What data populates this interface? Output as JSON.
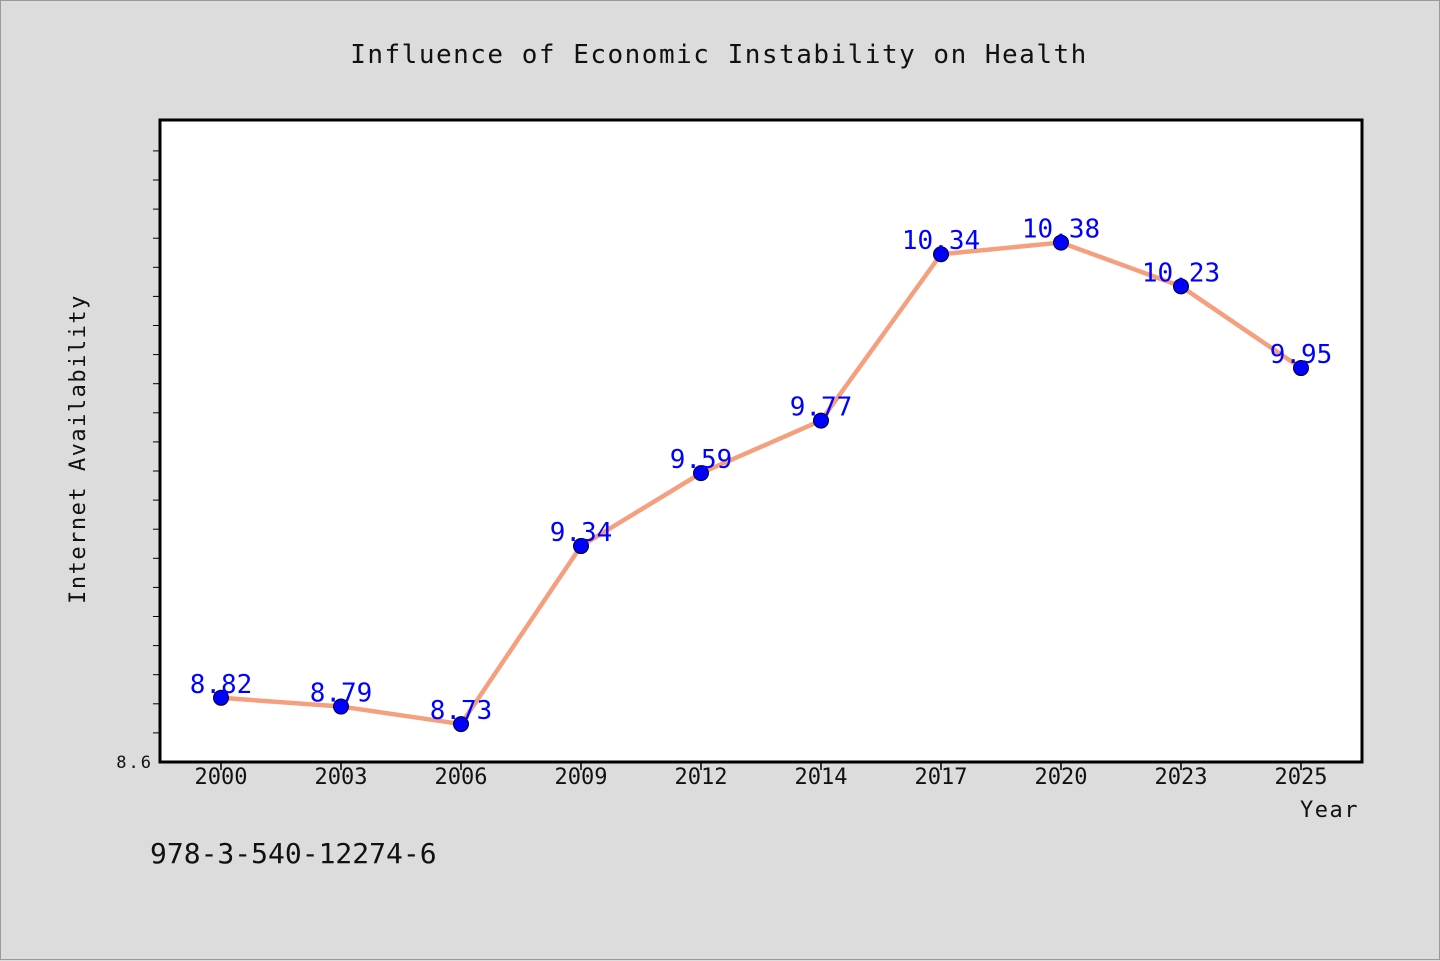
{
  "chart_data": {
    "type": "line",
    "title": "Influence of Economic Instability on Health",
    "xlabel": "Year",
    "ylabel": "Internet Availability",
    "categories": [
      "2000",
      "2003",
      "2006",
      "2009",
      "2012",
      "2014",
      "2017",
      "2020",
      "2023",
      "2025"
    ],
    "series": [
      {
        "values": [
          8.82,
          8.79,
          8.73,
          9.34,
          9.59,
          9.77,
          10.34,
          10.38,
          10.23,
          9.95
        ]
      }
    ],
    "data_labels": [
      "8.82",
      "8.79",
      "8.73",
      "9.34",
      "9.59",
      "9.77",
      "10.34",
      "10.38",
      "10.23",
      "9.95"
    ],
    "ylim": [
      8.6,
      10.8
    ],
    "ytick_labels": [
      "8.6"
    ],
    "grid": false,
    "colors": {
      "line": "#f4a07e",
      "marker": "#0000ff",
      "data_label": "#0000ff",
      "background": "#dcdcdc",
      "plot_background": "#ffffff"
    }
  },
  "footer_text": "978-3-540-12274-6"
}
